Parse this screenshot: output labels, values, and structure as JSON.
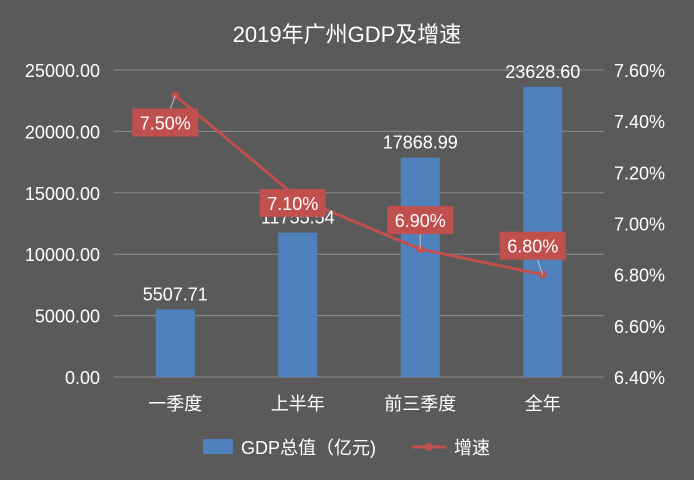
{
  "chart_data": {
    "type": "bar",
    "title": "2019年广州GDP及增速",
    "categories": [
      "一季度",
      "上半年",
      "前三季度",
      "全年"
    ],
    "series": [
      {
        "name": "GDP总值（亿元)",
        "type": "bar",
        "axis": "left",
        "values": [
          5507.71,
          11755.54,
          17868.99,
          23628.6
        ],
        "labels": [
          "5507.71",
          "11755.54",
          "17868.99",
          "23628.60"
        ],
        "color": "#4f81bd"
      },
      {
        "name": "增速",
        "type": "line",
        "axis": "right",
        "values": [
          7.5,
          7.1,
          6.9,
          6.8
        ],
        "labels": [
          "7.50%",
          "7.10%",
          "6.90%",
          "6.80%"
        ],
        "color": "#c0504d"
      }
    ],
    "y_left": {
      "ylim": [
        0,
        25000
      ],
      "ticks": [
        0,
        5000,
        10000,
        15000,
        20000,
        25000
      ],
      "tick_labels": [
        "0.00",
        "5000.00",
        "10000.00",
        "15000.00",
        "20000.00",
        "25000.00"
      ]
    },
    "y_right": {
      "ylim": [
        6.4,
        7.6
      ],
      "ticks": [
        6.4,
        6.6,
        6.8,
        7.0,
        7.2,
        7.4,
        7.6
      ],
      "tick_labels": [
        "6.40%",
        "6.60%",
        "6.80%",
        "7.00%",
        "7.20%",
        "7.40%",
        "7.60%"
      ]
    },
    "grid": true,
    "legend": "bottom",
    "colors": {
      "background": "#5a5a5a",
      "text": "#ffffff",
      "grid": "#8c8c8c",
      "label_box": "#c0504d"
    }
  }
}
